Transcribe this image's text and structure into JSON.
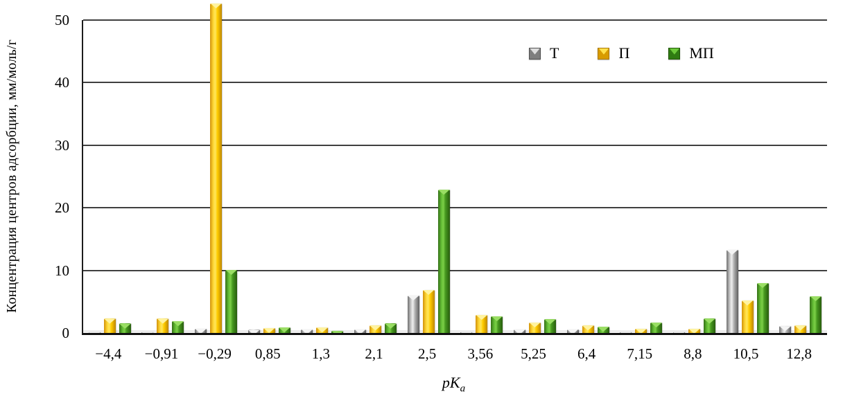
{
  "chart_data": {
    "type": "bar",
    "title": "",
    "xlabel": "pKa",
    "xlabel_main": "pK",
    "xlabel_sub": "a",
    "ylabel": "Концентрация центров адсорбции, мм/моль/г",
    "categories": [
      "−4,4",
      "−0,91",
      "−0,29",
      "0,85",
      "1,3",
      "2,1",
      "2,5",
      "3,56",
      "5,25",
      "6,4",
      "7,15",
      "8,8",
      "10,5",
      "12,8"
    ],
    "series": [
      {
        "name": "Т",
        "color": "#9a9a9a",
        "values": [
          0.1,
          0.1,
          0.7,
          0.5,
          0.6,
          0.6,
          6.0,
          0.15,
          0.55,
          0.6,
          0.15,
          0.15,
          13.3,
          1.1
        ]
      },
      {
        "name": "П",
        "color": "#ffcc00",
        "values": [
          2.3,
          2.3,
          52.7,
          0.8,
          0.9,
          1.2,
          6.9,
          2.9,
          1.7,
          1.2,
          0.7,
          0.7,
          5.2,
          1.2
        ]
      },
      {
        "name": "МП",
        "color": "#4aa823",
        "values": [
          1.5,
          1.9,
          10.1,
          0.9,
          0.3,
          1.5,
          22.9,
          2.7,
          2.2,
          1.0,
          1.7,
          2.3,
          8.0,
          5.9
        ]
      }
    ],
    "yticks": [
      0,
      10,
      20,
      30,
      40,
      50
    ],
    "ylim": [
      0,
      50
    ],
    "grid": true,
    "grid_color": "#3f3f3f",
    "legend_position": "top-right-inside",
    "decimal_separator": ","
  }
}
